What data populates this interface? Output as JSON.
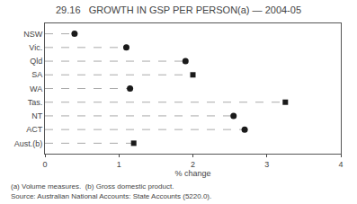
{
  "chart_data": {
    "type": "dot",
    "title": "29.16   GROWTH IN GSP PER PERSON(a) — 2004-05",
    "categories": [
      "NSW",
      "Vic.",
      "Qld",
      "SA",
      "WA",
      "Tas.",
      "NT",
      "ACT",
      "Aust.(b)"
    ],
    "values": [
      0.4,
      1.1,
      1.9,
      2.0,
      1.15,
      3.25,
      2.55,
      2.7,
      1.2
    ],
    "series": [
      {
        "marker": "circle",
        "color": "#1a1a1a",
        "values": [
          0.4,
          1.1,
          1.9,
          null,
          1.15,
          null,
          2.55,
          2.7,
          null
        ]
      },
      {
        "marker": "square",
        "color": "#1a1a1a",
        "values": [
          null,
          null,
          null,
          2.0,
          null,
          3.25,
          null,
          null,
          1.2
        ]
      }
    ],
    "color": "#aaaaaa",
    "line_style": "dashed",
    "x_label": "% change",
    "xlim": [
      0,
      4
    ],
    "xticks": [
      0,
      1,
      2,
      3,
      4
    ],
    "grid": false,
    "annotations": [
      "(a) Volume measures.  (b) Gross domestic product.",
      "Source: Australian National Accounts: State Accounts (5220.0)."
    ]
  }
}
